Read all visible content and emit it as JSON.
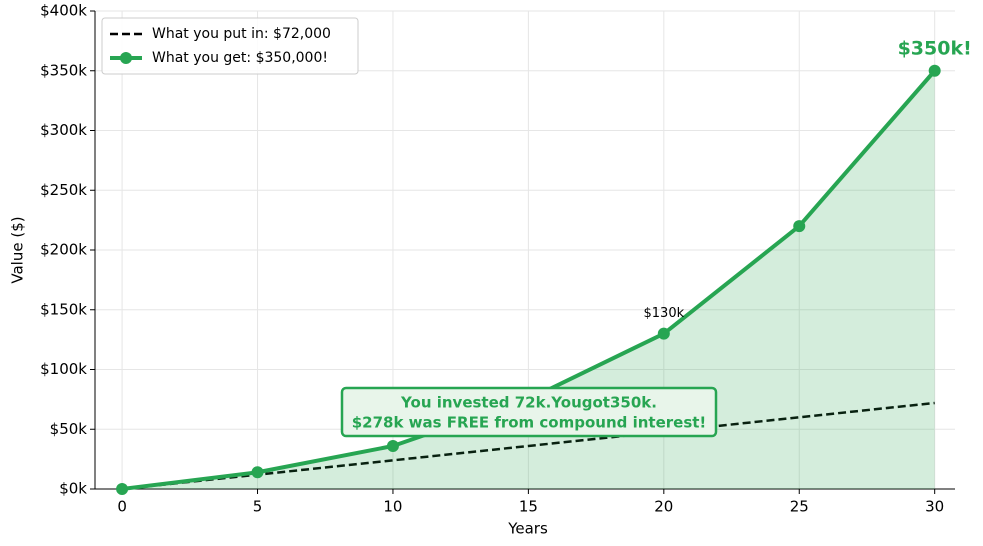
{
  "chart_data": {
    "type": "line",
    "x_label": "Years",
    "y_label": "Value ($)",
    "x": [
      0,
      5,
      10,
      15,
      20,
      25,
      30
    ],
    "series": [
      {
        "name": "What you put in: $72,000",
        "color": "#000000",
        "dash": true,
        "markers": false,
        "fill_under": false,
        "values": [
          0,
          12000,
          24000,
          36000,
          48000,
          60000,
          72000
        ]
      },
      {
        "name": "What you get: $350,000!",
        "color": "#27a552",
        "dash": false,
        "markers": true,
        "fill_under": true,
        "values": [
          0,
          14000,
          36000,
          75000,
          130000,
          220000,
          350000
        ],
        "value_labels": [
          null,
          null,
          null,
          null,
          "$130k",
          null,
          "$350k!"
        ]
      }
    ],
    "annotation": [
      "You invested 72k.Yougot350k.",
      "$278k was FREE from compound interest!"
    ],
    "xlim": [
      -1,
      30.75
    ],
    "xticks": [
      0,
      5,
      10,
      15,
      20,
      25,
      30
    ],
    "ylim": [
      0,
      400000
    ],
    "yticks": [
      {
        "value": 0,
        "label": "$0k"
      },
      {
        "value": 50000,
        "label": "$50k"
      },
      {
        "value": 100000,
        "label": "$100k"
      },
      {
        "value": 150000,
        "label": "$150k"
      },
      {
        "value": 200000,
        "label": "$200k"
      },
      {
        "value": 250000,
        "label": "$250k"
      },
      {
        "value": 300000,
        "label": "$300k"
      },
      {
        "value": 350000,
        "label": "$350k"
      },
      {
        "value": 400000,
        "label": "$400k"
      }
    ],
    "grid": true,
    "legend": "upper left"
  }
}
